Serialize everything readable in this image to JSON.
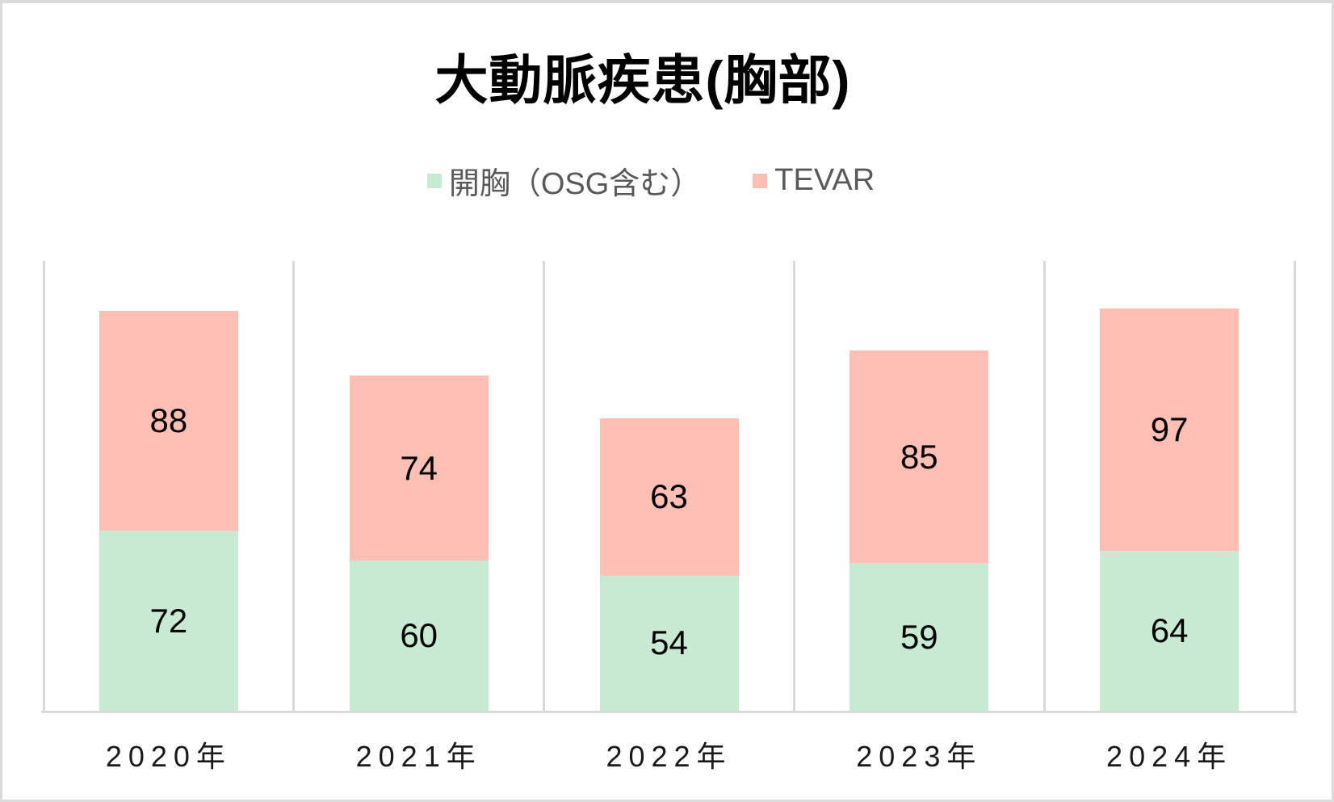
{
  "page": {
    "background": "#FFFFFF",
    "border_color": "#DBDBDB"
  },
  "chart_data": {
    "type": "bar",
    "variant": "stacked-column",
    "title": "大動脈疾患(胸部)",
    "categories": [
      "2020年",
      "2021年",
      "2022年",
      "2023年",
      "2024年"
    ],
    "series": [
      {
        "name": "開胸（OSG含む）",
        "color": "#C8E9D2",
        "values": [
          72,
          60,
          54,
          59,
          64
        ]
      },
      {
        "name": "TEVAR",
        "color": "#FFBFB4",
        "values": [
          88,
          74,
          63,
          85,
          97
        ]
      }
    ],
    "ylim": [
      0,
      180
    ],
    "y_axis_visible": false,
    "x_axis_line_color": "#D9D9D9",
    "gridlines": "vertical-category-separators",
    "gridline_color": "#D9D9D9",
    "legend_position": "top-center",
    "data_label_position": "center",
    "data_label_color": "#000000",
    "axis_label_color": "#1A1A1A",
    "title_color": "#000000",
    "legend_text_color": "#595959"
  }
}
